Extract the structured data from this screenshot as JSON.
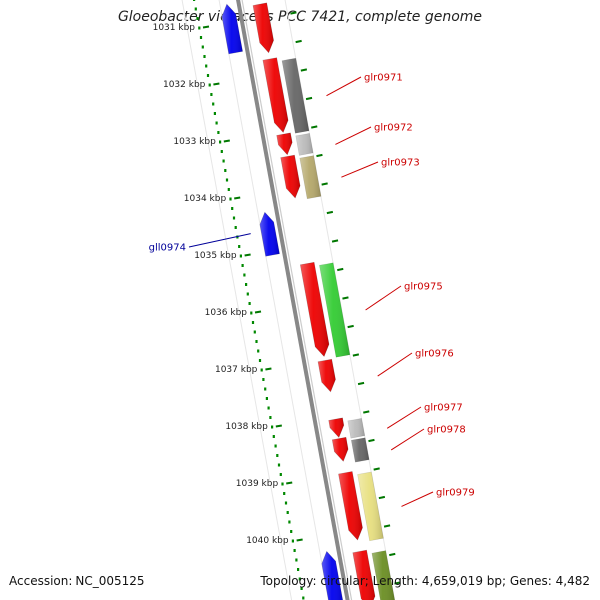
{
  "title": "Gloeobacter violaceus PCC 7421, complete genome",
  "footer": {
    "accession_label": "Accession:",
    "accession": "NC_005125",
    "stats": "Topology: circular; Length: 4,659,019 bp; Genes: 4,482"
  },
  "colors": {
    "backbone": "#888888",
    "forward_cog": "#ee0000",
    "reverse_cog": "#0000ee",
    "forward_label": "#cc0000",
    "reverse_label": "#000099",
    "gc_tick": "#007700",
    "gc_dot": "#008800"
  },
  "ruler": [
    {
      "label": "1031 kbp",
      "kbp": 1031
    },
    {
      "label": "1032 kbp",
      "kbp": 1032
    },
    {
      "label": "1033 kbp",
      "kbp": 1033
    },
    {
      "label": "1034 kbp",
      "kbp": 1034
    },
    {
      "label": "1035 kbp",
      "kbp": 1035
    },
    {
      "label": "1036 kbp",
      "kbp": 1036
    },
    {
      "label": "1037 kbp",
      "kbp": 1037
    },
    {
      "label": "1038 kbp",
      "kbp": 1038
    },
    {
      "label": "1039 kbp",
      "kbp": 1039
    },
    {
      "label": "1040 kbp",
      "kbp": 1040
    }
  ],
  "genes": [
    {
      "name": "glr0971",
      "strand": "forward",
      "start_kbp": 1031.56,
      "end_kbp": 1032.85,
      "cog_color": "#666666",
      "labeled": true
    },
    {
      "name": "glr0972",
      "strand": "forward",
      "start_kbp": 1032.88,
      "end_kbp": 1033.24,
      "cog_color": "#bbbbbb",
      "labeled": true
    },
    {
      "name": "glr0973",
      "strand": "forward",
      "start_kbp": 1033.27,
      "end_kbp": 1034.0,
      "cog_color": "#b5a86b",
      "labeled": true
    },
    {
      "name": "gll0974",
      "strand": "reverse",
      "start_kbp": 1034.25,
      "end_kbp": 1035.0,
      "cog_color": "",
      "labeled": true
    },
    {
      "name": "glr0975",
      "strand": "forward",
      "start_kbp": 1035.15,
      "end_kbp": 1036.78,
      "cog_color": "#33cc33",
      "labeled": true
    },
    {
      "name": "glr0976",
      "strand": "forward",
      "start_kbp": 1036.85,
      "end_kbp": 1037.4,
      "cog_color": "",
      "labeled": true
    },
    {
      "name": "glr0977",
      "strand": "forward",
      "start_kbp": 1037.88,
      "end_kbp": 1038.2,
      "cog_color": "#bbbbbb",
      "labeled": true
    },
    {
      "name": "glr0978",
      "strand": "forward",
      "start_kbp": 1038.22,
      "end_kbp": 1038.62,
      "cog_color": "#666666",
      "labeled": true
    },
    {
      "name": "glr0979",
      "strand": "forward",
      "start_kbp": 1038.82,
      "end_kbp": 1040.0,
      "cog_color": "#e8e080",
      "labeled": true
    },
    {
      "name": "",
      "strand": "forward",
      "start_kbp": 1030.6,
      "end_kbp": 1031.45,
      "cog_color": "",
      "labeled": false
    },
    {
      "name": "",
      "strand": "reverse",
      "start_kbp": 1030.6,
      "end_kbp": 1031.45,
      "cog_color": "",
      "labeled": false
    },
    {
      "name": "",
      "strand": "forward",
      "start_kbp": 1040.2,
      "end_kbp": 1041.2,
      "cog_color": "#6b8e23",
      "labeled": false
    },
    {
      "name": "",
      "strand": "reverse",
      "start_kbp": 1040.2,
      "end_kbp": 1041.2,
      "cog_color": "",
      "labeled": false
    }
  ]
}
